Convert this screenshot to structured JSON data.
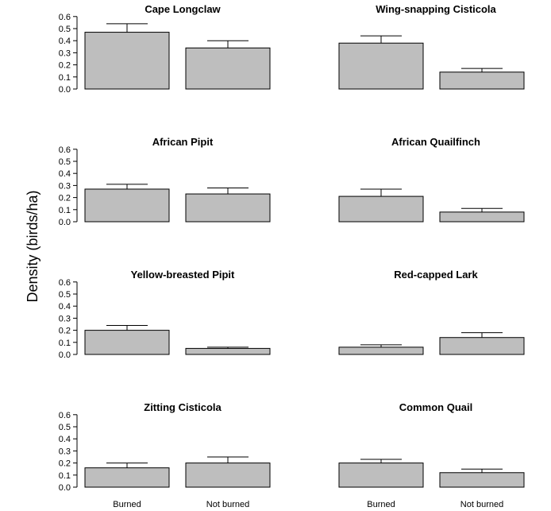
{
  "ylabel": "Density (birds/ha)",
  "chart_data": [
    {
      "type": "bar",
      "title": "Cape Longclaw",
      "categories": [
        "Burned",
        "Not burned"
      ],
      "values": [
        0.47,
        0.34
      ],
      "error_upper": [
        0.54,
        0.4
      ],
      "ylim": [
        0,
        0.6
      ],
      "yticks": [
        "0.0",
        "0.1",
        "0.2",
        "0.3",
        "0.4",
        "0.5",
        "0.6"
      ]
    },
    {
      "type": "bar",
      "title": "Wing-snapping Cisticola",
      "categories": [
        "Burned",
        "Not burned"
      ],
      "values": [
        0.38,
        0.14
      ],
      "error_upper": [
        0.44,
        0.17
      ],
      "ylim": [
        0,
        0.6
      ],
      "yticks": []
    },
    {
      "type": "bar",
      "title": "African Pipit",
      "categories": [
        "Burned",
        "Not burned"
      ],
      "values": [
        0.27,
        0.23
      ],
      "error_upper": [
        0.31,
        0.28
      ],
      "ylim": [
        0,
        0.6
      ],
      "yticks": [
        "0.0",
        "0.1",
        "0.2",
        "0.3",
        "0.4",
        "0.5",
        "0.6"
      ]
    },
    {
      "type": "bar",
      "title": "African Quailfinch",
      "categories": [
        "Burned",
        "Not burned"
      ],
      "values": [
        0.21,
        0.08
      ],
      "error_upper": [
        0.27,
        0.11
      ],
      "ylim": [
        0,
        0.6
      ],
      "yticks": []
    },
    {
      "type": "bar",
      "title": "Yellow-breasted Pipit",
      "categories": [
        "Burned",
        "Not burned"
      ],
      "values": [
        0.2,
        0.05
      ],
      "error_upper": [
        0.24,
        0.06
      ],
      "ylim": [
        0,
        0.6
      ],
      "yticks": [
        "0.0",
        "0.1",
        "0.2",
        "0.3",
        "0.4",
        "0.5",
        "0.6"
      ]
    },
    {
      "type": "bar",
      "title": "Red-capped Lark",
      "categories": [
        "Burned",
        "Not burned"
      ],
      "values": [
        0.06,
        0.14
      ],
      "error_upper": [
        0.08,
        0.18
      ],
      "ylim": [
        0,
        0.6
      ],
      "yticks": []
    },
    {
      "type": "bar",
      "title": "Zitting Cisticola",
      "categories": [
        "Burned",
        "Not burned"
      ],
      "values": [
        0.16,
        0.2
      ],
      "error_upper": [
        0.2,
        0.25
      ],
      "ylim": [
        0,
        0.6
      ],
      "yticks": [
        "0.0",
        "0.1",
        "0.2",
        "0.3",
        "0.4",
        "0.5",
        "0.6"
      ]
    },
    {
      "type": "bar",
      "title": "Common Quail",
      "categories": [
        "Burned",
        "Not burned"
      ],
      "values": [
        0.2,
        0.12
      ],
      "error_upper": [
        0.23,
        0.15
      ],
      "ylim": [
        0,
        0.6
      ],
      "yticks": []
    }
  ],
  "x_category_labels": [
    "Burned",
    "Not burned"
  ],
  "colors": {
    "bar_fill": "#bebebe",
    "bar_stroke": "#000000"
  }
}
